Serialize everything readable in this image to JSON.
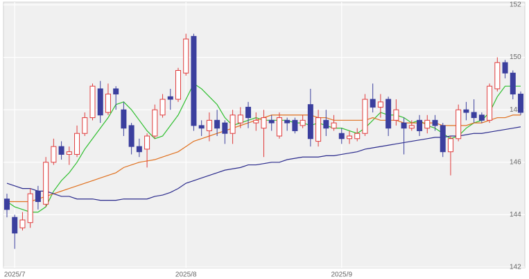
{
  "chart_data": {
    "type": "candlestick",
    "categories": [
      null,
      "2025/7",
      null,
      null,
      null,
      null,
      null,
      null,
      null,
      null,
      null,
      null,
      null,
      null,
      null,
      null,
      null,
      null,
      null,
      null,
      null,
      null,
      null,
      "2025/8",
      null,
      null,
      null,
      null,
      null,
      null,
      null,
      null,
      null,
      null,
      null,
      null,
      null,
      null,
      null,
      null,
      null,
      null,
      null,
      "2025/9",
      null,
      null,
      null,
      null,
      null,
      null,
      null,
      null,
      null,
      null,
      null,
      null,
      null,
      null,
      null,
      null,
      null,
      null,
      null,
      null,
      null,
      null,
      null
    ],
    "open": [
      144.6,
      143.9,
      143.5,
      143.7,
      144.9,
      144.4,
      146.0,
      146.6,
      146.3,
      146.3,
      147.1,
      147.7,
      148.8,
      147.9,
      148.8,
      148.0,
      147.4,
      146.6,
      146.5,
      147.0,
      147.8,
      148.5,
      148.4,
      149.4,
      150.8,
      147.4,
      147.2,
      147.6,
      147.5,
      147.1,
      147.5,
      148.1,
      147.5,
      147.3,
      147.6,
      147.0,
      147.6,
      147.6,
      147.4,
      148.2,
      146.8,
      147.6,
      147.3,
      147.1,
      146.9,
      146.9,
      147.1,
      148.4,
      148.1,
      148.4,
      147.6,
      147.5,
      147.3,
      147.6,
      147.3,
      147.6,
      147.4,
      146.4,
      146.9,
      148.0,
      147.9,
      147.8,
      147.6,
      148.8,
      149.8,
      149.4,
      148.6
    ],
    "high": [
      144.8,
      144.0,
      144.1,
      145.0,
      145.1,
      146.2,
      146.9,
      146.8,
      146.6,
      147.4,
      147.9,
      149.0,
      149.1,
      149.0,
      148.9,
      148.3,
      147.5,
      146.9,
      147.1,
      148.2,
      148.6,
      148.8,
      149.6,
      150.9,
      150.9,
      147.6,
      147.9,
      148.0,
      147.6,
      148.0,
      148.1,
      148.3,
      147.9,
      148.0,
      147.8,
      147.9,
      147.7,
      147.7,
      147.8,
      148.8,
      148.0,
      148.0,
      147.8,
      147.3,
      147.2,
      147.3,
      148.6,
      149.0,
      148.6,
      148.5,
      148.4,
      147.7,
      147.6,
      147.8,
      147.8,
      147.8,
      147.5,
      147.0,
      148.2,
      148.3,
      148.4,
      147.9,
      149.0,
      150.0,
      149.9,
      149.5,
      148.7
    ],
    "low": [
      143.9,
      142.7,
      143.4,
      143.5,
      144.2,
      144.3,
      145.9,
      146.1,
      145.9,
      146.2,
      147.0,
      147.6,
      147.5,
      147.8,
      148.0,
      147.0,
      146.3,
      146.2,
      145.8,
      146.9,
      147.7,
      148.0,
      148.3,
      149.3,
      147.2,
      147.0,
      146.8,
      147.0,
      146.7,
      146.7,
      147.3,
      147.3,
      147.2,
      146.2,
      147.2,
      146.9,
      147.2,
      147.1,
      147.3,
      146.6,
      146.6,
      147.0,
      147.2,
      146.7,
      146.7,
      146.8,
      147.0,
      147.9,
      147.7,
      147.0,
      147.4,
      146.3,
      147.2,
      147.0,
      147.1,
      147.2,
      146.2,
      145.5,
      146.8,
      147.6,
      147.5,
      147.5,
      147.5,
      148.7,
      149.2,
      148.4,
      147.8
    ],
    "close": [
      144.2,
      143.3,
      143.8,
      144.8,
      144.5,
      146.0,
      146.6,
      146.3,
      146.4,
      147.1,
      147.7,
      148.9,
      147.8,
      148.6,
      148.6,
      147.3,
      146.6,
      146.4,
      147.0,
      148.0,
      148.4,
      148.4,
      149.5,
      150.7,
      147.4,
      147.3,
      147.6,
      147.3,
      147.1,
      147.8,
      147.8,
      147.7,
      147.6,
      147.7,
      147.5,
      147.7,
      147.5,
      147.2,
      147.6,
      146.9,
      147.7,
      147.3,
      147.5,
      146.9,
      147.0,
      147.1,
      148.4,
      148.1,
      148.3,
      147.3,
      148.0,
      147.3,
      147.4,
      147.2,
      147.6,
      147.4,
      146.4,
      146.9,
      148.0,
      147.9,
      147.7,
      147.6,
      148.9,
      149.8,
      149.4,
      148.6,
      147.9
    ],
    "up_color": "#e03a3a",
    "down_color": "#3b3f9e",
    "series": [
      {
        "color": "#2fbf2f",
        "values": [
          144.5,
          144.3,
          144.2,
          144.1,
          144.1,
          144.3,
          144.9,
          145.3,
          145.6,
          146.0,
          146.5,
          146.9,
          147.3,
          147.7,
          148.2,
          148.3,
          148.0,
          147.6,
          147.2,
          146.9,
          147.0,
          147.4,
          147.8,
          148.4,
          149.0,
          148.8,
          148.5,
          148.2,
          147.7,
          147.4,
          147.5,
          147.6,
          147.7,
          147.6,
          147.6,
          147.6,
          147.6,
          147.5,
          147.5,
          147.4,
          147.5,
          147.4,
          147.3,
          147.3,
          147.2,
          147.1,
          147.3,
          147.6,
          147.9,
          147.8,
          147.8,
          147.7,
          147.5,
          147.6,
          147.4,
          147.3,
          147.1,
          146.9,
          147.0,
          147.3,
          147.5,
          147.6,
          147.9,
          148.5,
          148.9,
          148.9,
          148.9
        ]
      },
      {
        "color": "#e0701e",
        "values": [
          144.5,
          144.5,
          144.5,
          144.5,
          144.6,
          144.7,
          144.8,
          144.9,
          145.0,
          145.1,
          145.2,
          145.3,
          145.4,
          145.5,
          145.6,
          145.8,
          145.9,
          146.0,
          146.05,
          146.1,
          146.2,
          146.3,
          146.4,
          146.6,
          146.8,
          146.9,
          147.0,
          147.1,
          147.2,
          147.3,
          147.4,
          147.5,
          147.6,
          147.7,
          147.8,
          147.8,
          147.8,
          147.8,
          147.8,
          147.8,
          147.7,
          147.7,
          147.6,
          147.6,
          147.6,
          147.6,
          147.6,
          147.7,
          147.6,
          147.6,
          147.6,
          147.5,
          147.5,
          147.5,
          147.5,
          147.5,
          147.4,
          147.4,
          147.4,
          147.4,
          147.5,
          147.5,
          147.6,
          147.7,
          147.7,
          147.8,
          147.8
        ]
      },
      {
        "color": "#2a2a8c",
        "values": [
          145.2,
          145.1,
          145.0,
          145.0,
          144.9,
          144.9,
          144.8,
          144.7,
          144.7,
          144.6,
          144.6,
          144.6,
          144.55,
          144.55,
          144.55,
          144.6,
          144.6,
          144.6,
          144.6,
          144.7,
          144.75,
          144.85,
          145.0,
          145.2,
          145.3,
          145.4,
          145.5,
          145.6,
          145.7,
          145.75,
          145.8,
          145.9,
          145.9,
          145.95,
          146.0,
          146.0,
          146.1,
          146.15,
          146.2,
          146.2,
          146.2,
          146.25,
          146.25,
          146.3,
          146.35,
          146.4,
          146.5,
          146.55,
          146.6,
          146.65,
          146.7,
          146.75,
          146.8,
          146.85,
          146.9,
          146.95,
          146.95,
          147.0,
          147.0,
          147.05,
          147.1,
          147.1,
          147.15,
          147.2,
          147.25,
          147.3,
          147.35
        ]
      }
    ],
    "ylim": [
      142,
      152
    ],
    "yticks": [
      142,
      144,
      146,
      148,
      150,
      152
    ],
    "grid": true
  }
}
